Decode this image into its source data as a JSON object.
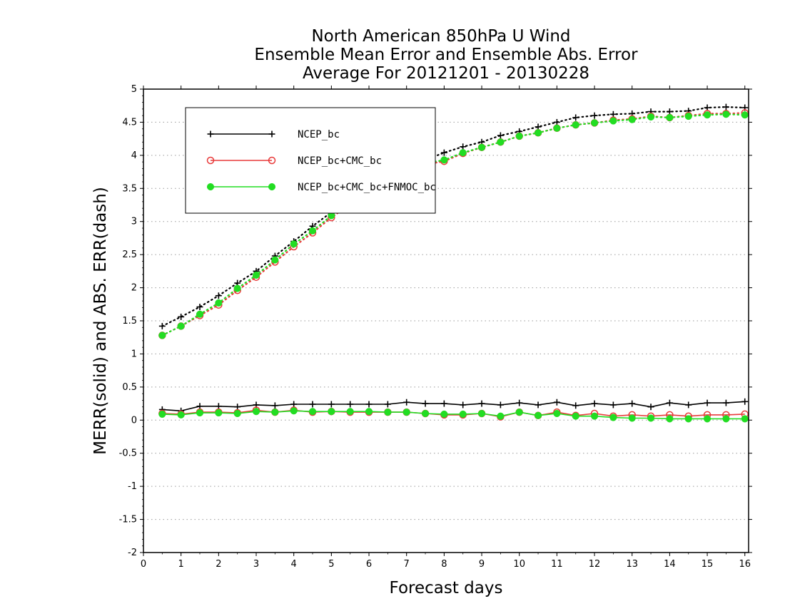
{
  "chart_data": {
    "type": "line",
    "title": [
      "North American 850hPa U Wind",
      "Ensemble Mean Error and Ensemble Abs. Error",
      "Average For 20121201 - 20130228"
    ],
    "xlabel": "Forecast days",
    "ylabel": "MERR(solid) and ABS. ERR(dash)",
    "xlim": [
      0,
      16.1
    ],
    "ylim": [
      -2,
      5
    ],
    "xticks": [
      "0",
      "1",
      "2",
      "3",
      "4",
      "5",
      "6",
      "7",
      "8",
      "9",
      "10",
      "11",
      "12",
      "13",
      "14",
      "15",
      "16"
    ],
    "yticks": [
      "5",
      "4.5",
      "4",
      "3.5",
      "3",
      "2.5",
      "2",
      "1.5",
      "1",
      "0.5",
      "0",
      "-0.5",
      "-1",
      "-1.5",
      "-2"
    ],
    "grid": true,
    "legend_placement": "top-left",
    "x": [
      0.5,
      1,
      1.5,
      2,
      2.5,
      3,
      3.5,
      4,
      4.5,
      5,
      5.5,
      6,
      6.5,
      7,
      7.5,
      8,
      8.5,
      9,
      9.5,
      10,
      10.5,
      11,
      11.5,
      12,
      12.5,
      13,
      13.5,
      14,
      14.5,
      15,
      15.5,
      16
    ],
    "series": [
      {
        "name": "NCEP_bc",
        "color": "#000000",
        "marker": "plus",
        "merr": [
          0.16,
          0.14,
          0.21,
          0.21,
          0.2,
          0.23,
          0.22,
          0.24,
          0.24,
          0.24,
          0.24,
          0.24,
          0.24,
          0.27,
          0.25,
          0.25,
          0.23,
          0.25,
          0.23,
          0.26,
          0.23,
          0.27,
          0.22,
          0.25,
          0.23,
          0.25,
          0.2,
          0.26,
          0.23,
          0.26,
          0.26,
          0.28
        ],
        "abs_err": [
          1.42,
          1.56,
          1.71,
          1.88,
          2.07,
          2.25,
          2.48,
          2.7,
          2.93,
          3.14,
          3.34,
          3.51,
          3.66,
          3.8,
          3.93,
          4.04,
          4.13,
          4.2,
          4.3,
          4.36,
          4.43,
          4.5,
          4.57,
          4.6,
          4.62,
          4.63,
          4.66,
          4.66,
          4.67,
          4.72,
          4.73,
          4.72
        ]
      },
      {
        "name": "NCEP_bc+CMC_bc",
        "color": "#e83a3a",
        "marker": "open-circle",
        "merr": [
          0.1,
          0.09,
          0.12,
          0.12,
          0.11,
          0.15,
          0.12,
          0.15,
          0.12,
          0.13,
          0.12,
          0.12,
          0.12,
          0.12,
          0.1,
          0.08,
          0.08,
          0.1,
          0.05,
          0.12,
          0.07,
          0.12,
          0.07,
          0.1,
          0.06,
          0.08,
          0.06,
          0.08,
          0.06,
          0.08,
          0.08,
          0.09
        ],
        "abs_err": [
          1.28,
          1.42,
          1.58,
          1.74,
          1.96,
          2.16,
          2.39,
          2.62,
          2.83,
          3.06,
          3.26,
          3.44,
          3.6,
          3.74,
          3.86,
          3.91,
          4.03,
          4.12,
          4.2,
          4.29,
          4.34,
          4.41,
          4.46,
          4.49,
          4.53,
          4.55,
          4.59,
          4.57,
          4.6,
          4.63,
          4.63,
          4.64
        ]
      },
      {
        "name": "NCEP_bc+CMC_bc+FNMOC_bc",
        "color": "#22dd22",
        "marker": "filled-circle",
        "merr": [
          0.09,
          0.08,
          0.11,
          0.11,
          0.1,
          0.13,
          0.12,
          0.14,
          0.13,
          0.13,
          0.13,
          0.13,
          0.12,
          0.12,
          0.1,
          0.09,
          0.09,
          0.1,
          0.06,
          0.12,
          0.07,
          0.1,
          0.06,
          0.06,
          0.04,
          0.03,
          0.03,
          0.02,
          0.02,
          0.02,
          0.02,
          0.02
        ],
        "abs_err": [
          1.28,
          1.42,
          1.6,
          1.77,
          1.99,
          2.19,
          2.42,
          2.66,
          2.86,
          3.09,
          3.29,
          3.46,
          3.62,
          3.76,
          3.88,
          3.93,
          4.04,
          4.12,
          4.2,
          4.29,
          4.34,
          4.41,
          4.46,
          4.49,
          4.52,
          4.54,
          4.58,
          4.57,
          4.59,
          4.61,
          4.62,
          4.61
        ]
      }
    ]
  }
}
